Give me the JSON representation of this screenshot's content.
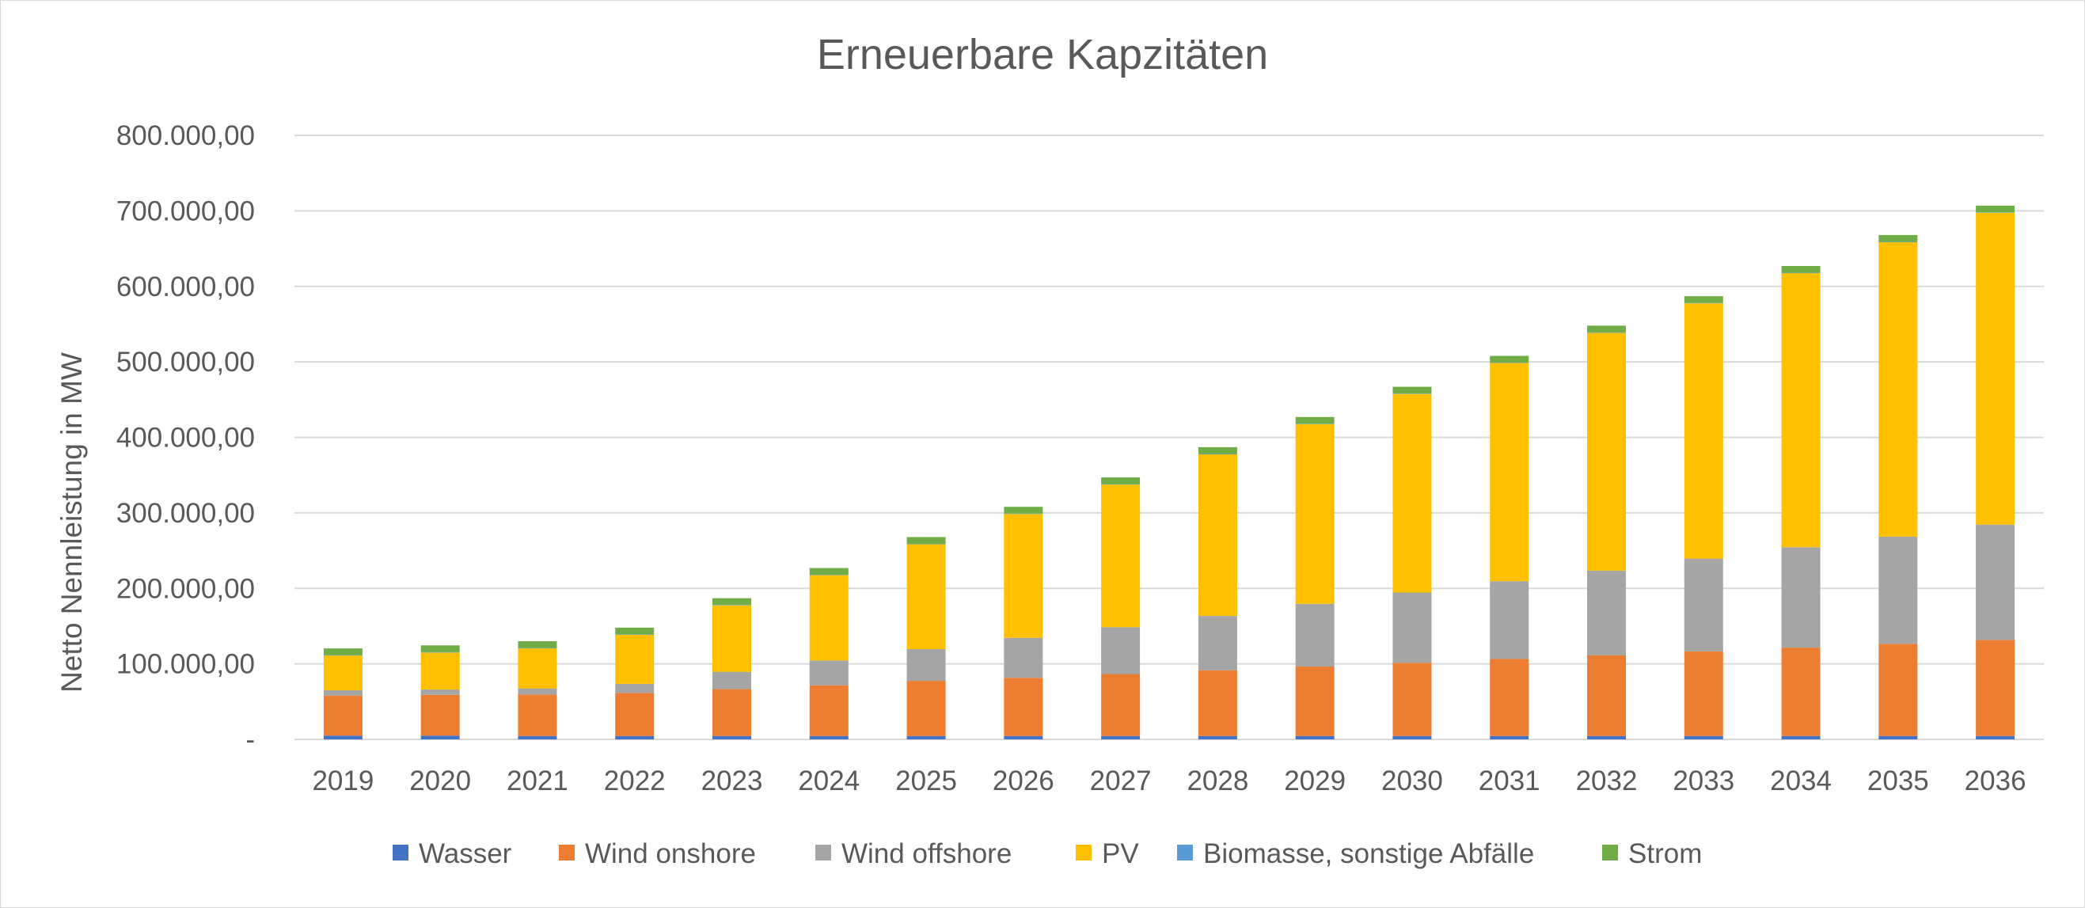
{
  "chart_data": {
    "type": "bar",
    "stacked": true,
    "title": "Erneuerbare Kapzitäten",
    "ylabel": "Netto Nennleistung in MW",
    "xlabel": "",
    "ylim": [
      0,
      800000
    ],
    "grid": true,
    "legend_position": "bottom",
    "y_ticks": [
      {
        "value": 0,
        "label": "-"
      },
      {
        "value": 100000,
        "label": "100.000,00"
      },
      {
        "value": 200000,
        "label": "200.000,00"
      },
      {
        "value": 300000,
        "label": "300.000,00"
      },
      {
        "value": 400000,
        "label": "400.000,00"
      },
      {
        "value": 500000,
        "label": "500.000,00"
      },
      {
        "value": 600000,
        "label": "600.000,00"
      },
      {
        "value": 700000,
        "label": "700.000,00"
      },
      {
        "value": 800000,
        "label": "800.000,00"
      }
    ],
    "categories": [
      "2019",
      "2020",
      "2021",
      "2022",
      "2023",
      "2024",
      "2025",
      "2026",
      "2027",
      "2028",
      "2029",
      "2030",
      "2031",
      "2032",
      "2033",
      "2034",
      "2035",
      "2036"
    ],
    "series": [
      {
        "name": "Wasser",
        "color": "#4472c4",
        "values": [
          5000,
          5000,
          4500,
          4500,
          4500,
          4500,
          4500,
          4500,
          4500,
          4500,
          4500,
          4500,
          4500,
          4500,
          4500,
          4500,
          4500,
          4500
        ]
      },
      {
        "name": "Wind onshore",
        "color": "#ed7d31",
        "values": [
          53000,
          54000,
          55000,
          57000,
          62000,
          67000,
          73000,
          77000,
          82000,
          87000,
          92000,
          97000,
          102000,
          107000,
          112000,
          117000,
          122000,
          127000
        ]
      },
      {
        "name": "Wind offshore",
        "color": "#a5a5a5",
        "values": [
          7000,
          7000,
          8000,
          12000,
          23000,
          33000,
          42000,
          53000,
          62000,
          72000,
          83000,
          93000,
          103000,
          112000,
          123000,
          133000,
          142000,
          153000
        ]
      },
      {
        "name": "PV",
        "color": "#ffc000",
        "values": [
          46000,
          49000,
          53000,
          65000,
          88000,
          113000,
          139000,
          164000,
          189000,
          214000,
          238000,
          263000,
          289000,
          315000,
          338000,
          363000,
          390000,
          413000
        ]
      },
      {
        "name": "Biomasse, sonstige Abfälle",
        "color": "#5b9bd5",
        "values": [
          500,
          500,
          500,
          500,
          500,
          500,
          500,
          500,
          500,
          500,
          500,
          500,
          500,
          500,
          500,
          500,
          500,
          500
        ]
      },
      {
        "name": "Strom",
        "color": "#70ad47",
        "values": [
          9000,
          9000,
          9000,
          9000,
          9000,
          9000,
          9000,
          9000,
          9000,
          9000,
          9000,
          9000,
          9000,
          9000,
          9000,
          9000,
          9000,
          9000
        ]
      }
    ]
  }
}
